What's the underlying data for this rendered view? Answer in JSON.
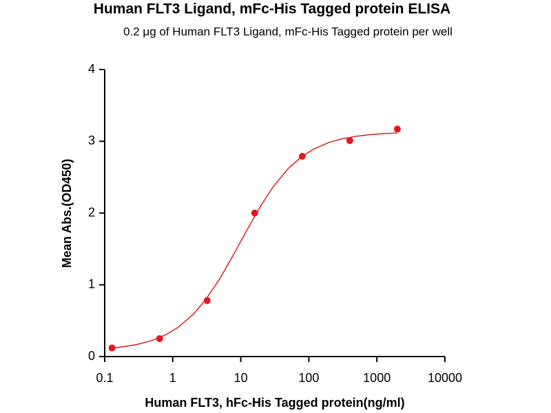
{
  "chart_data": {
    "type": "scatter",
    "title": "Human FLT3 Ligand, mFc-His Tagged protein ELISA",
    "subtitle": "0.2 μg of Human FLT3 Ligand, mFc-His Tagged protein per well",
    "x_label": "Human FLT3, hFc-His Tagged protein(ng/ml)",
    "y_label": "Mean Abs.(OD450)",
    "x_scale": "log",
    "xlim": [
      0.1,
      10000
    ],
    "xticks": [
      0.1,
      1,
      10,
      100,
      1000,
      10000
    ],
    "ylim": [
      0,
      4
    ],
    "yticks": [
      0,
      1,
      2,
      3,
      4
    ],
    "grid": false,
    "series": [
      {
        "color": "#e8161c",
        "x": [
          0.128,
          0.64,
          3.2,
          16,
          80,
          400,
          2000
        ],
        "values": [
          0.12,
          0.25,
          0.78,
          2.0,
          2.79,
          3.01,
          3.17
        ]
      }
    ],
    "fit": {
      "color": "#d42020",
      "x": [
        0.128,
        0.2,
        0.3,
        0.5,
        0.8,
        1.2,
        2,
        3,
        5,
        8,
        12,
        20,
        30,
        50,
        80,
        120,
        200,
        300,
        500,
        800,
        1200,
        2000
      ],
      "values": [
        0.119,
        0.14,
        0.169,
        0.225,
        0.306,
        0.407,
        0.588,
        0.784,
        1.097,
        1.436,
        1.744,
        2.113,
        2.368,
        2.622,
        2.791,
        2.895,
        2.985,
        3.032,
        3.07,
        3.092,
        3.105,
        3.115
      ]
    }
  }
}
